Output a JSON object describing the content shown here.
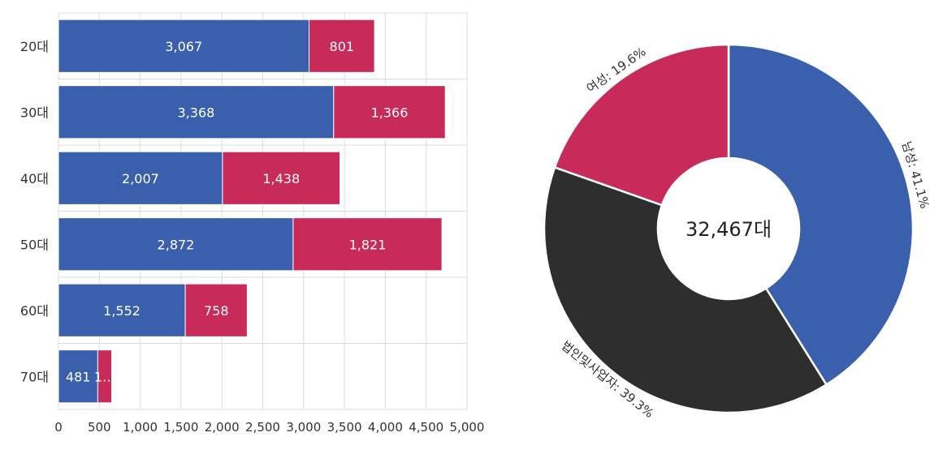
{
  "chart_data": [
    {
      "type": "bar",
      "orientation": "horizontal",
      "stacked": true,
      "categories": [
        "20대",
        "30대",
        "40대",
        "50대",
        "60대",
        "70대"
      ],
      "series": [
        {
          "values": [
            3067,
            3368,
            2007,
            2872,
            1552,
            481
          ],
          "labels": [
            "3,067",
            "3,368",
            "2,007",
            "2,872",
            "1,552",
            "481"
          ],
          "color": "#3a5fad"
        },
        {
          "values": [
            801,
            1366,
            1438,
            1821,
            758,
            170
          ],
          "labels": [
            "801",
            "1,366",
            "1,438",
            "1,821",
            "758",
            "1…"
          ],
          "color": "#c82b5a"
        }
      ],
      "xticks": [
        "0",
        "500",
        "1,000",
        "1,500",
        "2,000",
        "2,500",
        "3,000",
        "3,500",
        "4,000",
        "4,500",
        "5,000"
      ],
      "xlim": [
        0,
        5000
      ],
      "grid": true
    },
    {
      "type": "pie",
      "donut": true,
      "center_label": "32,467대",
      "slices": [
        {
          "label": "남성: 41.1%",
          "value": 41.1,
          "color": "#3a5fad"
        },
        {
          "label": "법인및사업자: 39.3%",
          "value": 39.3,
          "color": "#2e2e2e"
        },
        {
          "label": "여성: 19.6%",
          "value": 19.6,
          "color": "#c82b5a"
        }
      ]
    }
  ]
}
